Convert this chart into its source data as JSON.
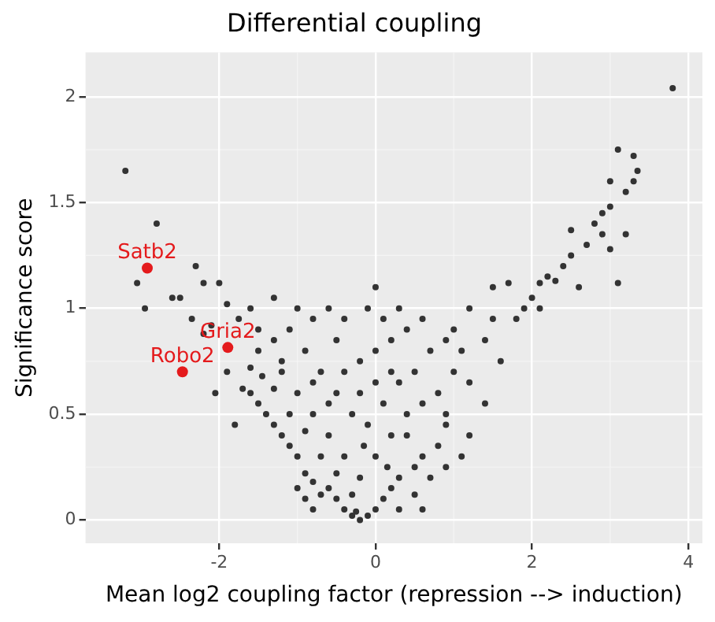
{
  "chart_data": {
    "type": "scatter",
    "title": "Differential coupling",
    "xlabel": "Mean log2 coupling factor (repression --> induction)",
    "ylabel": "Significance score",
    "xlim": [
      -3.71,
      4.18
    ],
    "ylim": [
      -0.11,
      2.21
    ],
    "xticks": [
      -2,
      0,
      2,
      4
    ],
    "yticks": [
      0,
      0.5,
      1,
      1.5,
      2
    ],
    "grid": true,
    "legend": false,
    "marker": "circle",
    "series": [
      {
        "color": "#333333",
        "x": [
          -3.2,
          -2.8,
          -3.05,
          -2.95,
          -2.5,
          -2.3,
          -2.2,
          -2.0,
          -2.6,
          -2.35,
          -2.1,
          -1.9,
          -1.75,
          -2.05,
          -1.8,
          -1.9,
          -2.2,
          -1.6,
          -1.5,
          -1.3,
          1.0,
          1.2,
          1.5,
          1.7,
          2.0,
          2.1,
          2.2,
          2.4,
          2.5,
          2.7,
          2.8,
          2.9,
          3.0,
          3.2,
          3.3,
          3.1,
          3.3,
          3.8,
          3.1,
          2.6,
          3.0,
          3.2,
          1.8,
          1.6,
          1.4,
          1.2,
          0.9,
          2.1,
          2.3,
          1.9,
          1.5,
          2.5,
          2.9,
          3.35,
          3.0,
          -0.3,
          -0.2,
          -0.1,
          -0.25,
          -0.4,
          0.0,
          -0.5,
          -0.7,
          0.1,
          0.2,
          -0.8,
          -0.9,
          0.3,
          0.5,
          -1.0,
          -1.1,
          0.6,
          -1.2,
          -1.3,
          0.8,
          0.4,
          -1.4,
          -1.5,
          -1.6,
          -1.7,
          -1.45,
          -1.2,
          -1.0,
          -0.8,
          -0.6,
          -0.4,
          -0.2,
          0.0,
          0.2,
          0.4,
          0.6,
          0.8,
          1.0,
          1.1,
          -0.9,
          -0.7,
          -0.5,
          -0.3,
          -0.1,
          0.1,
          0.3,
          0.5,
          0.7,
          0.9,
          -1.1,
          -0.8,
          -0.5,
          -0.2,
          0.0,
          0.2,
          0.4,
          0.6,
          -1.3,
          -1.5,
          -1.6,
          -1.3,
          -1.1,
          -0.9,
          -0.7,
          -0.5,
          -0.6,
          -0.9,
          -0.3,
          0.3,
          0.5,
          0.7,
          0.9,
          1.2,
          1.4,
          -0.4,
          -0.1,
          0.0,
          0.1,
          0.3,
          -0.6,
          -1.0,
          -1.2,
          -0.2,
          0.0,
          -0.4,
          -0.6,
          -0.8,
          0.2,
          -1.0,
          -0.8,
          0.15,
          -0.15,
          0.6,
          1.1,
          0.9
        ],
        "values": [
          1.65,
          1.4,
          1.12,
          1.0,
          1.05,
          1.2,
          1.12,
          1.12,
          1.05,
          0.95,
          0.92,
          1.02,
          0.95,
          0.6,
          0.45,
          0.7,
          0.88,
          1.0,
          0.9,
          1.05,
          0.9,
          1.0,
          1.1,
          1.12,
          1.05,
          1.12,
          1.15,
          1.2,
          1.25,
          1.3,
          1.4,
          1.45,
          1.48,
          1.55,
          1.6,
          1.75,
          1.72,
          2.04,
          1.12,
          1.1,
          1.28,
          1.35,
          0.95,
          0.75,
          0.85,
          0.65,
          0.5,
          1.0,
          1.13,
          1.0,
          0.95,
          1.37,
          1.35,
          1.65,
          1.6,
          0.02,
          0.0,
          0.02,
          0.04,
          0.05,
          0.05,
          0.1,
          0.12,
          0.1,
          0.15,
          0.18,
          0.22,
          0.2,
          0.25,
          0.3,
          0.35,
          0.3,
          0.4,
          0.45,
          0.35,
          0.4,
          0.5,
          0.55,
          0.6,
          0.62,
          0.68,
          0.7,
          0.6,
          0.5,
          0.4,
          0.3,
          0.2,
          0.3,
          0.4,
          0.5,
          0.55,
          0.6,
          0.7,
          0.8,
          0.8,
          0.7,
          0.6,
          0.5,
          0.45,
          0.55,
          0.65,
          0.7,
          0.8,
          0.85,
          0.9,
          0.95,
          0.85,
          0.75,
          0.8,
          0.85,
          0.9,
          0.95,
          0.85,
          0.8,
          0.72,
          0.62,
          0.5,
          0.42,
          0.3,
          0.22,
          0.15,
          0.1,
          0.12,
          0.05,
          0.12,
          0.2,
          0.25,
          0.4,
          0.55,
          0.95,
          1.0,
          1.1,
          0.95,
          1.0,
          1.0,
          1.0,
          0.75,
          0.6,
          0.65,
          0.7,
          0.55,
          0.65,
          0.7,
          0.15,
          0.05,
          0.25,
          0.35,
          0.05,
          0.3,
          0.45
        ]
      },
      {
        "color": "#e41a1c",
        "x": [
          -2.92,
          -1.89,
          -2.47
        ],
        "values": [
          1.19,
          0.815,
          0.7
        ]
      }
    ],
    "annotations": [
      {
        "text": "Satb2",
        "x": -2.92,
        "y": 1.19
      },
      {
        "text": "Gria2",
        "x": -1.89,
        "y": 0.815
      },
      {
        "text": "Robo2",
        "x": -2.47,
        "y": 0.7
      }
    ]
  }
}
